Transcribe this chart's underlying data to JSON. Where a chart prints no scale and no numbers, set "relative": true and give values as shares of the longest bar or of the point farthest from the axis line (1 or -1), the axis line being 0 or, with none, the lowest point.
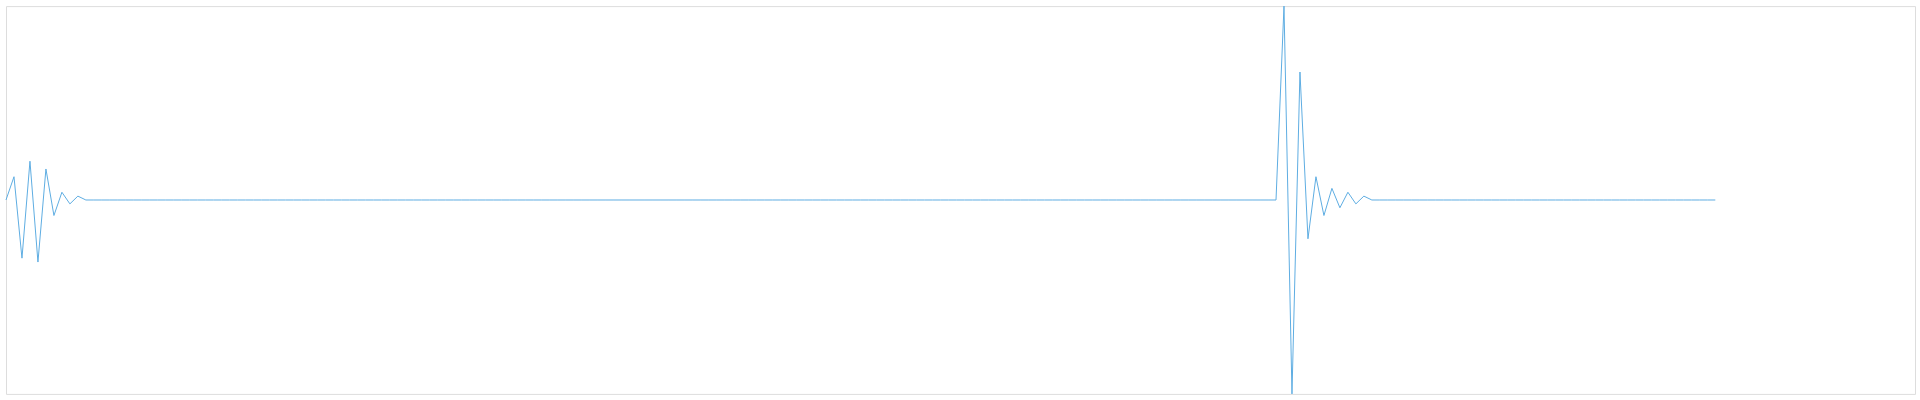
{
  "chart_data": {
    "type": "line",
    "relative": true,
    "color": "#5dade2",
    "categories": [
      null,
      null,
      null,
      null,
      null,
      null,
      null,
      null,
      null,
      null,
      null,
      null,
      null,
      null,
      null,
      null,
      null,
      null,
      null,
      null,
      null,
      null,
      null,
      null,
      null,
      null,
      null,
      null,
      null,
      null,
      null,
      null,
      null,
      null,
      null,
      null,
      null,
      null,
      null,
      null,
      null,
      null,
      null,
      null,
      null,
      null,
      null,
      null,
      null,
      null,
      null,
      null,
      null,
      null,
      null,
      null,
      null,
      null,
      null,
      null,
      null,
      null,
      null,
      null,
      null,
      null,
      null,
      null,
      null,
      null,
      null,
      null,
      null,
      null,
      null,
      null,
      null,
      null,
      null,
      null,
      null,
      null,
      null,
      null,
      null,
      null,
      null,
      null,
      null,
      null,
      null,
      null,
      null,
      null,
      null,
      null,
      null,
      null,
      null,
      null,
      null,
      null,
      null,
      null,
      null,
      null,
      null,
      null,
      null,
      null,
      null,
      null,
      null,
      null,
      null,
      null,
      null,
      null,
      null,
      null,
      null,
      null,
      null,
      null,
      null,
      null,
      null,
      null,
      null,
      null,
      null,
      null,
      null,
      null,
      null,
      null,
      null,
      null,
      null,
      null,
      null,
      null,
      null,
      null,
      null,
      null,
      null,
      null,
      null,
      null,
      null,
      null,
      null,
      null,
      null,
      null,
      null,
      null,
      null,
      null,
      null,
      null,
      null,
      null,
      null,
      null,
      null,
      null,
      null,
      null,
      null,
      null,
      null,
      null,
      null,
      null,
      null,
      null,
      null,
      null,
      null,
      null,
      null,
      null,
      null,
      null,
      null,
      null,
      null,
      null,
      null,
      null,
      null,
      null,
      null,
      null,
      null,
      null,
      null,
      null,
      null,
      null,
      null,
      null,
      null,
      null,
      null,
      null,
      null,
      null,
      null,
      null,
      null,
      null,
      null,
      null,
      null,
      null,
      null,
      null,
      null,
      null,
      null,
      null,
      null,
      null,
      null,
      null,
      null,
      null,
      null,
      null,
      null,
      null,
      null,
      null,
      null,
      null,
      null,
      null
    ],
    "values": [
      0.5,
      0.56,
      0.35,
      0.6,
      0.34,
      0.58,
      0.46,
      0.52,
      0.49,
      0.51,
      0.5,
      0.5,
      0.5,
      0.5,
      0.5,
      0.5,
      0.5,
      0.5,
      0.5,
      0.5,
      0.5,
      0.5,
      0.5,
      0.5,
      0.5,
      0.5,
      0.5,
      0.5,
      0.5,
      0.5,
      0.5,
      0.5,
      0.5,
      0.5,
      0.5,
      0.5,
      0.5,
      0.5,
      0.5,
      0.5,
      0.5,
      0.5,
      0.5,
      0.5,
      0.5,
      0.5,
      0.5,
      0.5,
      0.5,
      0.5,
      0.5,
      0.5,
      0.5,
      0.5,
      0.5,
      0.5,
      0.5,
      0.5,
      0.5,
      0.5,
      0.5,
      0.5,
      0.5,
      0.5,
      0.5,
      0.5,
      0.5,
      0.5,
      0.5,
      0.5,
      0.5,
      0.5,
      0.5,
      0.5,
      0.5,
      0.5,
      0.5,
      0.5,
      0.5,
      0.5,
      0.5,
      0.5,
      0.5,
      0.5,
      0.5,
      0.5,
      0.5,
      0.5,
      0.5,
      0.5,
      0.5,
      0.5,
      0.5,
      0.5,
      0.5,
      0.5,
      0.5,
      0.5,
      0.5,
      0.5,
      0.5,
      0.5,
      0.5,
      0.5,
      0.5,
      0.5,
      0.5,
      0.5,
      0.5,
      0.5,
      0.5,
      0.5,
      0.5,
      0.5,
      0.5,
      0.5,
      0.5,
      0.5,
      0.5,
      0.5,
      0.5,
      0.5,
      0.5,
      0.5,
      0.5,
      0.5,
      0.5,
      0.5,
      0.5,
      0.5,
      0.5,
      0.5,
      0.5,
      0.5,
      0.5,
      0.5,
      0.5,
      0.5,
      0.5,
      0.5,
      0.5,
      0.5,
      0.5,
      0.5,
      0.5,
      0.5,
      0.5,
      0.5,
      0.5,
      0.5,
      0.5,
      0.5,
      0.5,
      0.5,
      0.5,
      0.5,
      0.5,
      0.5,
      0.5,
      0.5,
      1.0,
      0.0,
      0.83,
      0.4,
      0.56,
      0.46,
      0.53,
      0.48,
      0.52,
      0.49,
      0.51,
      0.5,
      0.5,
      0.5,
      0.5,
      0.5,
      0.5,
      0.5,
      0.5,
      0.5,
      0.5,
      0.5,
      0.5,
      0.5,
      0.5,
      0.5,
      0.5,
      0.5,
      0.5,
      0.5,
      0.5,
      0.5,
      0.5,
      0.5,
      0.5,
      0.5,
      0.5,
      0.5,
      0.5,
      0.5,
      0.5,
      0.5,
      0.5,
      0.5,
      0.5,
      0.5,
      0.5,
      0.5,
      0.5,
      0.5,
      0.5,
      0.5,
      0.5,
      0.5,
      0.5,
      null,
      null,
      null,
      null,
      null,
      null,
      null,
      null,
      null,
      null,
      null,
      null,
      null,
      null,
      null,
      null,
      null,
      null,
      null,
      null,
      null,
      null,
      null,
      null,
      null
    ]
  }
}
